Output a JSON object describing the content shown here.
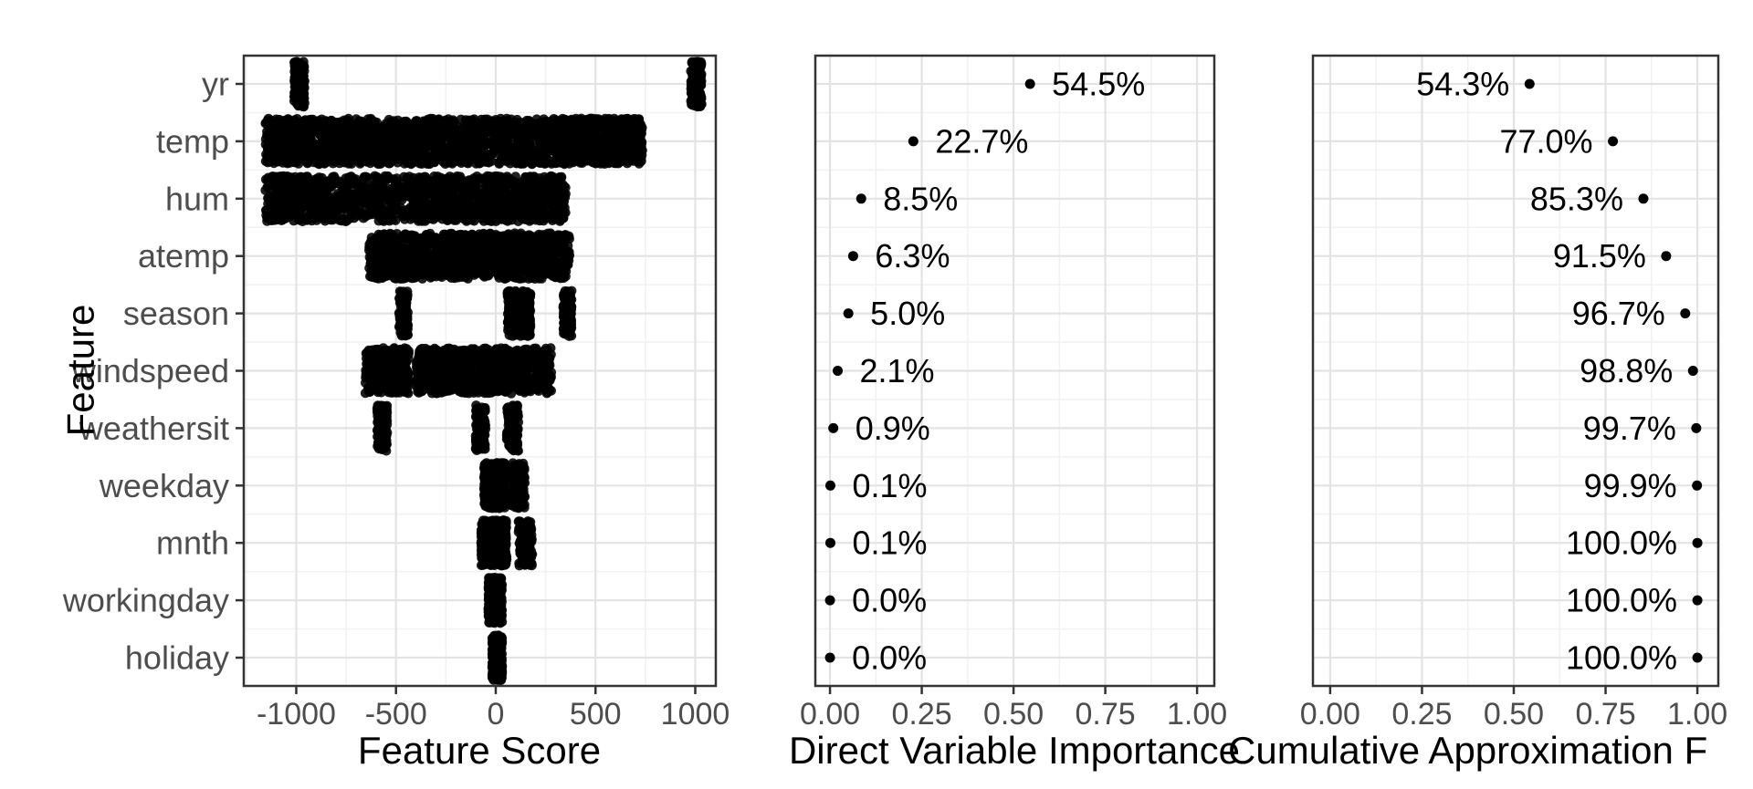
{
  "figure": {
    "y_axis_title": "Feature",
    "features": [
      "yr",
      "temp",
      "hum",
      "atemp",
      "season",
      "windspeed",
      "weathersit",
      "weekday",
      "mnth",
      "workingday",
      "holiday"
    ],
    "colors": {
      "dot": "#000000",
      "axis_text": "#4d4d4d",
      "title_text": "#000000",
      "grid_major": "#e3e3e3",
      "grid_minor": "#f1f1f1",
      "panel_border": "#333333",
      "tick": "#333333",
      "background": "#ffffff"
    }
  },
  "chart_data": [
    {
      "type": "strip",
      "xlabel": "Feature Score",
      "x_ticks": [
        -1000,
        -500,
        0,
        500,
        1000
      ],
      "x_tick_labels": [
        "-1000",
        "-500",
        "0",
        "500",
        "1000"
      ],
      "xlim": [
        -1263,
        1103
      ],
      "categories": [
        "yr",
        "temp",
        "hum",
        "atemp",
        "season",
        "windspeed",
        "weathersit",
        "weekday",
        "mnth",
        "workingday",
        "holiday"
      ],
      "clusters": {
        "yr": [
          [
            -1010,
            -958,
            170
          ],
          [
            978,
            1032,
            170
          ]
        ],
        "temp": [
          [
            -1155,
            -300,
            850
          ],
          [
            -300,
            300,
            500
          ],
          [
            300,
            735,
            650
          ]
        ],
        "hum": [
          [
            -1155,
            -300,
            700
          ],
          [
            -300,
            352,
            650
          ]
        ],
        "atemp": [
          [
            -636,
            371,
            1100
          ]
        ],
        "season": [
          [
            -485,
            -440,
            140
          ],
          [
            58,
            110,
            140
          ],
          [
            122,
            174,
            140
          ],
          [
            338,
            381,
            140
          ]
        ],
        "windspeed": [
          [
            -654,
            -435,
            320
          ],
          [
            -398,
            279,
            780
          ]
        ],
        "weathersit": [
          [
            -595,
            -544,
            120
          ],
          [
            -101,
            -50,
            120
          ],
          [
            55,
            114,
            120
          ]
        ],
        "weekday": [
          [
            -59,
            46,
            420
          ],
          [
            78,
            146,
            140
          ]
        ],
        "mnth": [
          [
            -73,
            55,
            440
          ],
          [
            114,
            183,
            140
          ]
        ],
        "workingday": [
          [
            -37,
            32,
            330
          ]
        ],
        "holiday": [
          [
            -18,
            32,
            240
          ]
        ]
      }
    },
    {
      "type": "scatter",
      "xlabel": "Direct Variable Importance",
      "x_ticks": [
        0,
        0.25,
        0.5,
        0.75,
        1
      ],
      "x_tick_labels": [
        "0.00",
        "0.25",
        "0.50",
        "0.75",
        "1.00"
      ],
      "xlim": [
        -0.04,
        1.047
      ],
      "values": [
        0.545,
        0.227,
        0.085,
        0.063,
        0.05,
        0.021,
        0.009,
        0.001,
        0.001,
        0.0,
        0.0
      ],
      "labels": [
        "54.5%",
        "22.7%",
        "8.5%",
        "6.3%",
        "5.0%",
        "2.1%",
        "0.9%",
        "0.1%",
        "0.1%",
        "0.0%",
        "0.0%"
      ],
      "label_side": "right"
    },
    {
      "type": "scatter",
      "xlabel": "Cumulative Approximation F",
      "x_ticks": [
        0,
        0.25,
        0.5,
        0.75,
        1
      ],
      "x_tick_labels": [
        "0.00",
        "0.25",
        "0.50",
        "0.75",
        "1.00"
      ],
      "xlim": [
        -0.047,
        1.057
      ],
      "values": [
        0.543,
        0.77,
        0.853,
        0.915,
        0.967,
        0.988,
        0.997,
        0.999,
        1.0,
        1.0,
        1.0
      ],
      "labels": [
        "54.3%",
        "77.0%",
        "85.3%",
        "91.5%",
        "96.7%",
        "98.8%",
        "99.7%",
        "99.9%",
        "100.0%",
        "100.0%",
        "100.0%"
      ],
      "label_side": "left"
    }
  ]
}
